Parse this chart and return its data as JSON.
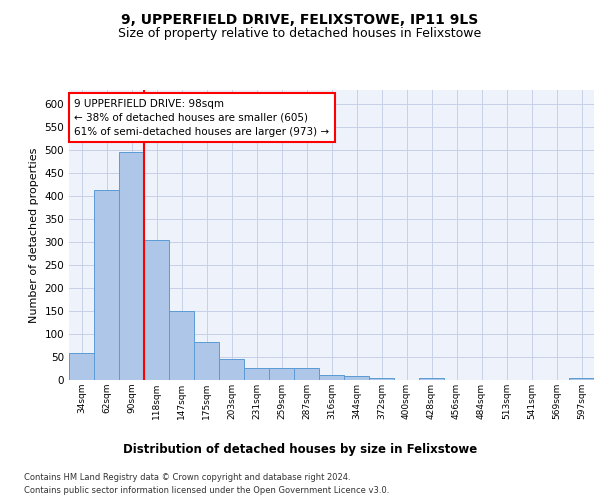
{
  "title1": "9, UPPERFIELD DRIVE, FELIXSTOWE, IP11 9LS",
  "title2": "Size of property relative to detached houses in Felixstowe",
  "xlabel": "Distribution of detached houses by size in Felixstowe",
  "ylabel": "Number of detached properties",
  "categories": [
    "34sqm",
    "62sqm",
    "90sqm",
    "118sqm",
    "147sqm",
    "175sqm",
    "203sqm",
    "231sqm",
    "259sqm",
    "287sqm",
    "316sqm",
    "344sqm",
    "372sqm",
    "400sqm",
    "428sqm",
    "456sqm",
    "484sqm",
    "513sqm",
    "541sqm",
    "569sqm",
    "597sqm"
  ],
  "values": [
    58,
    413,
    495,
    305,
    150,
    82,
    45,
    25,
    25,
    25,
    10,
    8,
    5,
    0,
    5,
    0,
    0,
    0,
    0,
    0,
    5
  ],
  "bar_color": "#aec6e8",
  "bar_edge_color": "#5b9bd5",
  "annotation_text": "9 UPPERFIELD DRIVE: 98sqm\n← 38% of detached houses are smaller (605)\n61% of semi-detached houses are larger (973) →",
  "annotation_box_color": "white",
  "annotation_box_edge_color": "red",
  "vline_color": "red",
  "ylim": [
    0,
    630
  ],
  "yticks": [
    0,
    50,
    100,
    150,
    200,
    250,
    300,
    350,
    400,
    450,
    500,
    550,
    600
  ],
  "footer1": "Contains HM Land Registry data © Crown copyright and database right 2024.",
  "footer2": "Contains public sector information licensed under the Open Government Licence v3.0.",
  "bg_color": "#eef2fb",
  "grid_color": "#c8d0e8",
  "title1_fontsize": 10,
  "title2_fontsize": 9,
  "xlabel_fontsize": 8.5,
  "ylabel_fontsize": 8,
  "annotation_fontsize": 7.5,
  "footer_fontsize": 6.0
}
